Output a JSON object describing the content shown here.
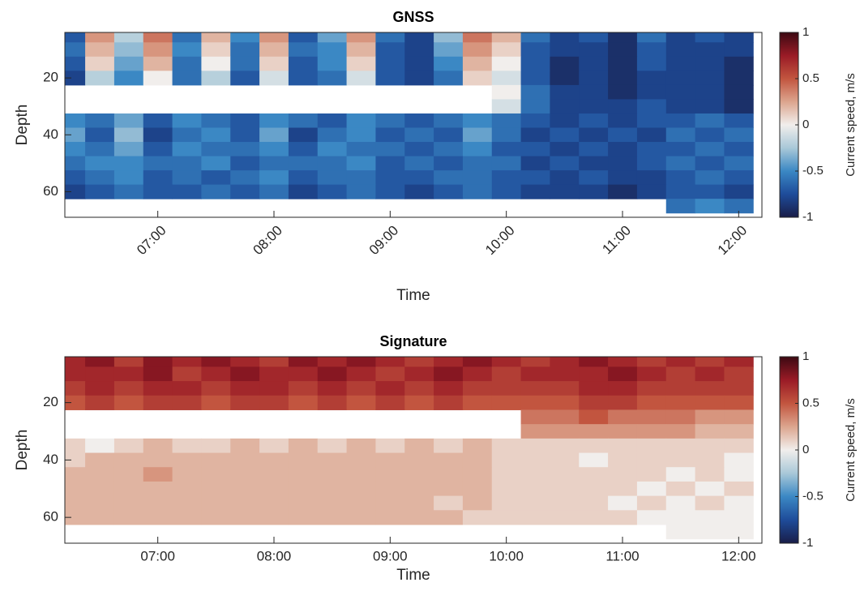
{
  "chart_data": [
    {
      "type": "heatmap",
      "title": "GNSS",
      "xlabel": "Time",
      "ylabel": "Depth",
      "colorbar_label": "Current speed, m/s",
      "xlim": [
        6.2,
        12.2
      ],
      "xticks": [
        {
          "value": 7,
          "label": "07:00"
        },
        {
          "value": 8,
          "label": "08:00"
        },
        {
          "value": 9,
          "label": "09:00"
        },
        {
          "value": 10,
          "label": "10:00"
        },
        {
          "value": 11,
          "label": "11:00"
        },
        {
          "value": 12,
          "label": "12:00"
        }
      ],
      "xtick_rotation": -45,
      "ylim": [
        4,
        69
      ],
      "yticks": [
        20,
        40,
        60
      ],
      "y_reversed": true,
      "clim": [
        -1,
        1
      ],
      "cticks": [
        -1,
        -0.5,
        0,
        0.5,
        1
      ],
      "colormap": [
        "#191d48",
        "#1e4c9a",
        "#3b88c4",
        "#a9c8d8",
        "#f1eeec",
        "#dca58e",
        "#c2553f",
        "#9a1b26",
        "#3c0912"
      ],
      "x": [
        6.25,
        6.5,
        6.75,
        7.0,
        7.25,
        7.5,
        7.75,
        8.0,
        8.25,
        8.5,
        8.75,
        9.0,
        9.25,
        9.5,
        9.75,
        10.0,
        10.25,
        10.5,
        10.75,
        11.0,
        11.25,
        11.5,
        11.75,
        12.0
      ],
      "y": [
        5,
        10,
        15,
        20,
        25,
        30,
        35,
        40,
        45,
        50,
        55,
        60,
        65
      ],
      "z": [
        [
          -0.7,
          0.3,
          -0.2,
          0.4,
          -0.6,
          0.2,
          -0.5,
          0.3,
          -0.7,
          -0.4,
          0.3,
          -0.6,
          -0.8,
          -0.3,
          0.4,
          0.2,
          -0.6,
          -0.8,
          -0.7,
          -0.9,
          -0.6,
          -0.8,
          -0.7,
          -0.8
        ],
        [
          -0.6,
          0.2,
          -0.3,
          0.3,
          -0.5,
          0.1,
          -0.6,
          0.2,
          -0.6,
          -0.5,
          0.2,
          -0.7,
          -0.8,
          -0.4,
          0.3,
          0.1,
          -0.7,
          -0.8,
          -0.8,
          -0.9,
          -0.7,
          -0.8,
          -0.8,
          -0.8
        ],
        [
          -0.7,
          0.1,
          -0.4,
          0.2,
          -0.6,
          0.0,
          -0.6,
          0.1,
          -0.7,
          -0.5,
          0.1,
          -0.7,
          -0.8,
          -0.5,
          0.2,
          0.0,
          -0.7,
          -0.9,
          -0.8,
          -0.9,
          -0.7,
          -0.8,
          -0.8,
          -0.9
        ],
        [
          -0.8,
          -0.2,
          -0.5,
          0.0,
          -0.6,
          -0.2,
          -0.7,
          -0.1,
          -0.7,
          -0.6,
          -0.1,
          -0.7,
          -0.8,
          -0.6,
          0.1,
          -0.1,
          -0.7,
          -0.9,
          -0.8,
          -0.9,
          -0.8,
          -0.8,
          -0.8,
          -0.9
        ],
        [
          null,
          null,
          null,
          null,
          null,
          null,
          null,
          null,
          null,
          null,
          null,
          null,
          null,
          null,
          null,
          0.0,
          -0.6,
          -0.8,
          -0.8,
          -0.9,
          -0.8,
          -0.8,
          -0.8,
          -0.9
        ],
        [
          null,
          null,
          null,
          null,
          null,
          null,
          null,
          null,
          null,
          null,
          null,
          null,
          null,
          null,
          null,
          -0.1,
          -0.6,
          -0.8,
          -0.8,
          -0.8,
          -0.7,
          -0.8,
          -0.8,
          -0.9
        ],
        [
          -0.5,
          -0.6,
          -0.4,
          -0.7,
          -0.5,
          -0.6,
          -0.7,
          -0.5,
          -0.6,
          -0.7,
          -0.5,
          -0.6,
          -0.7,
          -0.6,
          -0.5,
          -0.6,
          -0.7,
          -0.8,
          -0.7,
          -0.8,
          -0.7,
          -0.7,
          -0.6,
          -0.7
        ],
        [
          -0.4,
          -0.7,
          -0.3,
          -0.8,
          -0.6,
          -0.5,
          -0.7,
          -0.4,
          -0.8,
          -0.6,
          -0.5,
          -0.7,
          -0.6,
          -0.7,
          -0.4,
          -0.6,
          -0.8,
          -0.7,
          -0.8,
          -0.7,
          -0.8,
          -0.6,
          -0.7,
          -0.6
        ],
        [
          -0.5,
          -0.6,
          -0.4,
          -0.7,
          -0.5,
          -0.6,
          -0.6,
          -0.5,
          -0.7,
          -0.5,
          -0.6,
          -0.6,
          -0.7,
          -0.6,
          -0.5,
          -0.7,
          -0.7,
          -0.8,
          -0.7,
          -0.8,
          -0.7,
          -0.7,
          -0.6,
          -0.7
        ],
        [
          -0.6,
          -0.5,
          -0.5,
          -0.6,
          -0.6,
          -0.5,
          -0.7,
          -0.6,
          -0.6,
          -0.6,
          -0.5,
          -0.7,
          -0.6,
          -0.7,
          -0.6,
          -0.6,
          -0.8,
          -0.7,
          -0.8,
          -0.8,
          -0.7,
          -0.6,
          -0.7,
          -0.6
        ],
        [
          -0.7,
          -0.6,
          -0.5,
          -0.7,
          -0.6,
          -0.7,
          -0.6,
          -0.5,
          -0.7,
          -0.6,
          -0.6,
          -0.7,
          -0.7,
          -0.6,
          -0.6,
          -0.7,
          -0.7,
          -0.8,
          -0.7,
          -0.8,
          -0.8,
          -0.7,
          -0.6,
          -0.7
        ],
        [
          -0.8,
          -0.7,
          -0.6,
          -0.7,
          -0.7,
          -0.6,
          -0.7,
          -0.6,
          -0.8,
          -0.7,
          -0.6,
          -0.7,
          -0.8,
          -0.7,
          -0.6,
          -0.7,
          -0.8,
          -0.8,
          -0.8,
          -0.9,
          -0.8,
          -0.7,
          -0.7,
          -0.8
        ],
        [
          null,
          null,
          null,
          null,
          null,
          null,
          null,
          null,
          null,
          null,
          null,
          null,
          null,
          null,
          null,
          null,
          null,
          null,
          null,
          null,
          null,
          -0.6,
          -0.5,
          -0.6
        ]
      ]
    },
    {
      "type": "heatmap",
      "title": "Signature",
      "xlabel": "Time",
      "ylabel": "Depth",
      "colorbar_label": "Current speed, m/s",
      "xlim": [
        6.2,
        12.2
      ],
      "xticks": [
        {
          "value": 7,
          "label": "07:00"
        },
        {
          "value": 8,
          "label": "08:00"
        },
        {
          "value": 9,
          "label": "09:00"
        },
        {
          "value": 10,
          "label": "10:00"
        },
        {
          "value": 11,
          "label": "11:00"
        },
        {
          "value": 12,
          "label": "12:00"
        }
      ],
      "xtick_rotation": 0,
      "ylim": [
        4,
        69
      ],
      "yticks": [
        20,
        40,
        60
      ],
      "y_reversed": true,
      "clim": [
        -1,
        1
      ],
      "cticks": [
        -1,
        -0.5,
        0,
        0.5,
        1
      ],
      "colormap": [
        "#191d48",
        "#1e4c9a",
        "#3b88c4",
        "#a9c8d8",
        "#f1eeec",
        "#dca58e",
        "#c2553f",
        "#9a1b26",
        "#3c0912"
      ],
      "x": [
        6.25,
        6.5,
        6.75,
        7.0,
        7.25,
        7.5,
        7.75,
        8.0,
        8.25,
        8.5,
        8.75,
        9.0,
        9.25,
        9.5,
        9.75,
        10.0,
        10.25,
        10.5,
        10.75,
        11.0,
        11.25,
        11.5,
        11.75,
        12.0
      ],
      "y": [
        5,
        10,
        15,
        20,
        25,
        30,
        35,
        40,
        45,
        50,
        55,
        60,
        65
      ],
      "z": [
        [
          0.7,
          0.8,
          0.6,
          0.8,
          0.7,
          0.8,
          0.7,
          0.6,
          0.8,
          0.7,
          0.8,
          0.7,
          0.6,
          0.7,
          0.8,
          0.7,
          0.6,
          0.7,
          0.8,
          0.7,
          0.6,
          0.7,
          0.6,
          0.7
        ],
        [
          0.7,
          0.7,
          0.7,
          0.8,
          0.6,
          0.7,
          0.8,
          0.7,
          0.7,
          0.8,
          0.7,
          0.6,
          0.7,
          0.8,
          0.7,
          0.6,
          0.7,
          0.7,
          0.7,
          0.8,
          0.7,
          0.6,
          0.7,
          0.6
        ],
        [
          0.6,
          0.7,
          0.6,
          0.7,
          0.7,
          0.6,
          0.7,
          0.7,
          0.6,
          0.7,
          0.6,
          0.7,
          0.6,
          0.7,
          0.6,
          0.6,
          0.6,
          0.6,
          0.7,
          0.7,
          0.6,
          0.6,
          0.6,
          0.6
        ],
        [
          0.5,
          0.6,
          0.5,
          0.6,
          0.6,
          0.5,
          0.6,
          0.6,
          0.5,
          0.6,
          0.5,
          0.6,
          0.5,
          0.6,
          0.5,
          0.5,
          0.5,
          0.5,
          0.6,
          0.6,
          0.5,
          0.5,
          0.5,
          0.5
        ],
        [
          null,
          null,
          null,
          null,
          null,
          null,
          null,
          null,
          null,
          null,
          null,
          null,
          null,
          null,
          null,
          null,
          0.4,
          0.4,
          0.5,
          0.4,
          0.4,
          0.4,
          0.3,
          0.3
        ],
        [
          null,
          null,
          null,
          null,
          null,
          null,
          null,
          null,
          null,
          null,
          null,
          null,
          null,
          null,
          null,
          null,
          0.3,
          0.3,
          0.3,
          0.3,
          0.3,
          0.3,
          0.2,
          0.2
        ],
        [
          0.1,
          0.0,
          0.1,
          0.2,
          0.1,
          0.1,
          0.2,
          0.1,
          0.2,
          0.1,
          0.2,
          0.1,
          0.2,
          0.1,
          0.2,
          0.1,
          0.1,
          0.1,
          0.1,
          0.1,
          0.1,
          0.1,
          0.1,
          0.1
        ],
        [
          0.1,
          0.2,
          0.2,
          0.2,
          0.2,
          0.2,
          0.2,
          0.2,
          0.2,
          0.2,
          0.2,
          0.2,
          0.2,
          0.2,
          0.2,
          0.1,
          0.1,
          0.1,
          0.0,
          0.1,
          0.1,
          0.1,
          0.1,
          0.0
        ],
        [
          0.2,
          0.2,
          0.2,
          0.3,
          0.2,
          0.2,
          0.2,
          0.2,
          0.2,
          0.2,
          0.2,
          0.2,
          0.2,
          0.2,
          0.2,
          0.1,
          0.1,
          0.1,
          0.1,
          0.1,
          0.1,
          0.0,
          0.1,
          0.0
        ],
        [
          0.2,
          0.2,
          0.2,
          0.2,
          0.2,
          0.2,
          0.2,
          0.2,
          0.2,
          0.2,
          0.2,
          0.2,
          0.2,
          0.2,
          0.2,
          0.1,
          0.1,
          0.1,
          0.1,
          0.1,
          0.0,
          0.1,
          0.0,
          0.1
        ],
        [
          0.2,
          0.2,
          0.2,
          0.2,
          0.2,
          0.2,
          0.2,
          0.2,
          0.2,
          0.2,
          0.2,
          0.2,
          0.2,
          0.1,
          0.2,
          0.1,
          0.1,
          0.1,
          0.1,
          0.0,
          0.1,
          0.0,
          0.1,
          0.0
        ],
        [
          0.2,
          0.2,
          0.2,
          0.2,
          0.2,
          0.2,
          0.2,
          0.2,
          0.2,
          0.2,
          0.2,
          0.2,
          0.2,
          0.2,
          0.1,
          0.1,
          0.1,
          0.1,
          0.1,
          0.1,
          0.0,
          0.0,
          0.0,
          0.0
        ],
        [
          null,
          null,
          null,
          null,
          null,
          null,
          null,
          null,
          null,
          null,
          null,
          null,
          null,
          null,
          null,
          null,
          null,
          null,
          null,
          null,
          null,
          0.0,
          0.0,
          0.0
        ]
      ]
    }
  ]
}
